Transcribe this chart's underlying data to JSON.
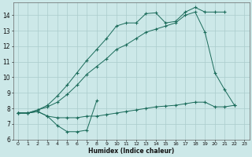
{
  "xlabel": "Humidex (Indice chaleur)",
  "bg_color": "#cce8e8",
  "grid_color": "#aacccc",
  "line_color": "#1a6b5a",
  "xlim": [
    -0.5,
    23.5
  ],
  "ylim": [
    6,
    14.8
  ],
  "xtick_labels": [
    "0",
    "1",
    "2",
    "3",
    "4",
    "5",
    "6",
    "7",
    "8",
    "9",
    "10",
    "11",
    "12",
    "13",
    "14",
    "15",
    "16",
    "17",
    "18",
    "19",
    "20",
    "21",
    "22",
    "23"
  ],
  "yticks": [
    6,
    7,
    8,
    9,
    10,
    11,
    12,
    13,
    14
  ],
  "series": [
    {
      "x": [
        0,
        1,
        2,
        3,
        4,
        5,
        6,
        7,
        8
      ],
      "y": [
        7.7,
        7.7,
        7.8,
        7.5,
        6.9,
        6.5,
        6.5,
        6.6,
        8.5
      ]
    },
    {
      "x": [
        0,
        1,
        2,
        3,
        4,
        5,
        6,
        7,
        8,
        9,
        10,
        11,
        12,
        13,
        14,
        15,
        16,
        17,
        18,
        19,
        20,
        21,
        22
      ],
      "y": [
        7.7,
        7.7,
        7.8,
        7.5,
        7.4,
        7.4,
        7.4,
        7.5,
        7.5,
        7.6,
        7.7,
        7.8,
        7.9,
        8.0,
        8.1,
        8.15,
        8.2,
        8.3,
        8.4,
        8.4,
        8.1,
        8.1,
        8.2
      ]
    },
    {
      "x": [
        0,
        1,
        2,
        3,
        4,
        5,
        6,
        7,
        8,
        9,
        10,
        11,
        12,
        13,
        14,
        15,
        16,
        17,
        18,
        19,
        20,
        21,
        22
      ],
      "y": [
        7.7,
        7.7,
        7.9,
        8.1,
        8.4,
        8.9,
        9.5,
        10.2,
        10.7,
        11.2,
        11.8,
        12.1,
        12.5,
        12.9,
        13.1,
        13.3,
        13.5,
        14.0,
        14.2,
        12.9,
        10.3,
        9.2,
        8.2
      ]
    },
    {
      "x": [
        0,
        1,
        2,
        3,
        4,
        5,
        6,
        7,
        8,
        9,
        10,
        11,
        12,
        13,
        14,
        15,
        16,
        17,
        18,
        19,
        20,
        21
      ],
      "y": [
        7.7,
        7.7,
        7.9,
        8.2,
        8.8,
        9.5,
        10.3,
        11.1,
        11.8,
        12.5,
        13.3,
        13.5,
        13.5,
        14.1,
        14.15,
        13.5,
        13.6,
        14.2,
        14.5,
        14.2,
        14.2,
        14.2
      ]
    }
  ]
}
